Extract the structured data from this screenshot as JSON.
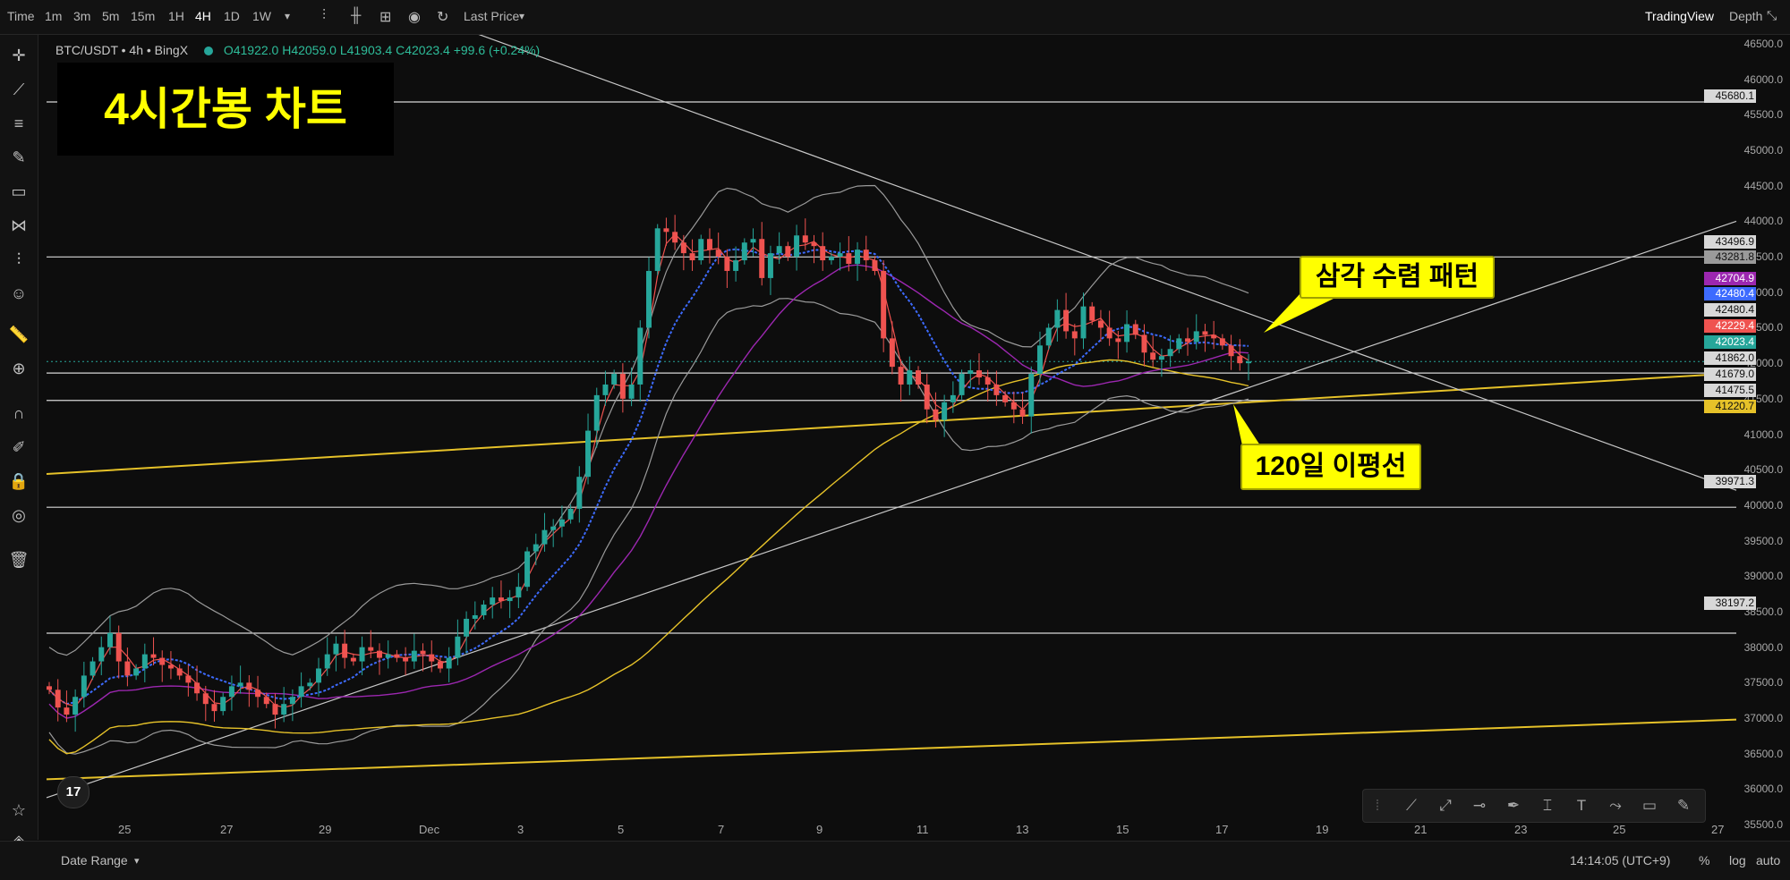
{
  "toolbar": {
    "timeframes": [
      "Time",
      "1m",
      "3m",
      "5m",
      "15m",
      "1H",
      "4H",
      "1D",
      "1W"
    ],
    "active_timeframe": "4H",
    "price_type": "Last Price",
    "brand": "TradingView",
    "depth": "Depth"
  },
  "legend": {
    "symbol": "BTC/USDT • 4h • BingX",
    "ohlc": "O41922.0  H42059.0  L41903.4  C42023.4  +99.6 (+0.24%)"
  },
  "annotations": {
    "title": "4시간봉 차트",
    "triangle": "삼각 수렴 패턴",
    "ma120": "120일 이평선"
  },
  "colors": {
    "up": "#26a69a",
    "down": "#ef5350",
    "gold": "#e6c229",
    "ma_blue": "#3d6bff",
    "ma_purple": "#9c27b0",
    "band": "#9a9a9a",
    "callout_bg": "#ffff00"
  },
  "price_axis": {
    "ticks": [
      "46500.0",
      "46000.0",
      "45500.0",
      "45000.0",
      "44500.0",
      "44000.0",
      "43500.0",
      "43000.0",
      "42500.0",
      "42000.0",
      "41500.0",
      "41000.0",
      "40500.0",
      "40000.0",
      "39500.0",
      "39000.0",
      "38500.0",
      "38000.0",
      "37500.0",
      "37000.0",
      "36500.0",
      "36000.0",
      "35500.0"
    ],
    "labels": [
      {
        "text": "45680.1",
        "bg": "#d8d8d8",
        "fg": "#111"
      },
      {
        "text": "43496.9",
        "bg": "#d8d8d8",
        "fg": "#111"
      },
      {
        "text": "43281.8",
        "bg": "#9a9a9a",
        "fg": "#111"
      },
      {
        "text": "42704.9",
        "bg": "#9c27b0",
        "fg": "#fff"
      },
      {
        "text": "42480.4",
        "bg": "#3d6bff",
        "fg": "#fff"
      },
      {
        "text": "42480.4",
        "bg": "#d8d8d8",
        "fg": "#111"
      },
      {
        "text": "42229.4",
        "bg": "#ef5350",
        "fg": "#fff"
      },
      {
        "text": "42023.4",
        "bg": "#26a69a",
        "fg": "#fff"
      },
      {
        "text": "41862.0",
        "bg": "#d8d8d8",
        "fg": "#111"
      },
      {
        "text": "41679.0",
        "bg": "#d8d8d8",
        "fg": "#111"
      },
      {
        "text": "41475.5",
        "bg": "#d8d8d8",
        "fg": "#111"
      },
      {
        "text": "41220.7",
        "bg": "#e6c229",
        "fg": "#111"
      },
      {
        "text": "39971.3",
        "bg": "#d8d8d8",
        "fg": "#111"
      },
      {
        "text": "38197.2",
        "bg": "#d8d8d8",
        "fg": "#111"
      }
    ]
  },
  "time_axis": [
    "25",
    "27",
    "29",
    "Dec",
    "3",
    "5",
    "7",
    "9",
    "11",
    "13",
    "15",
    "17",
    "19",
    "21",
    "23",
    "25",
    "27"
  ],
  "horizontal_levels": [
    45680.1,
    43496.9,
    41862.0,
    41475.5,
    39971.3,
    38197.2
  ],
  "bottom": {
    "date_range": "Date Range",
    "clock": "14:14:05 (UTC+9)",
    "percent": "%",
    "log": "log",
    "auto": "auto",
    "logo": "17"
  },
  "chart_data": {
    "type": "candlestick",
    "symbol": "BTC/USDT",
    "interval": "4h",
    "ylim": [
      35300,
      46600
    ],
    "x_ticks": [
      "25",
      "27",
      "29",
      "Dec",
      "3",
      "5",
      "7",
      "9",
      "11",
      "13",
      "15",
      "17",
      "19",
      "21",
      "23",
      "25",
      "27"
    ],
    "close_series": [
      37400,
      37150,
      37050,
      37300,
      37600,
      37800,
      38000,
      38200,
      37800,
      37600,
      37700,
      37900,
      37850,
      37750,
      37700,
      37600,
      37500,
      37350,
      37200,
      37100,
      37300,
      37450,
      37500,
      37400,
      37300,
      37200,
      37050,
      37200,
      37300,
      37450,
      37500,
      37700,
      37900,
      38050,
      37850,
      37800,
      38000,
      37950,
      37850,
      37900,
      37850,
      37800,
      37950,
      37900,
      37800,
      37700,
      37850,
      38150,
      38400,
      38450,
      38600,
      38700,
      38650,
      38700,
      38850,
      39350,
      39450,
      39650,
      39700,
      39800,
      39950,
      40400,
      41050,
      41550,
      41700,
      41850,
      41500,
      41700,
      42500,
      43300,
      43900,
      43850,
      43700,
      43550,
      43450,
      43750,
      43600,
      43500,
      43300,
      43450,
      43700,
      43750,
      43200,
      43550,
      43650,
      43500,
      43800,
      43700,
      43650,
      43450,
      43500,
      43550,
      43400,
      43600,
      43450,
      43300,
      42350,
      41950,
      41700,
      41900,
      41700,
      41350,
      41200,
      41450,
      41550,
      41850,
      41900,
      41800,
      41700,
      41550,
      41450,
      41350,
      41250,
      41850,
      42250,
      42500,
      42750,
      42450,
      42350,
      42800,
      42600,
      42500,
      42350,
      42300,
      42550,
      42400,
      42150,
      42050,
      42100,
      42200,
      42350,
      42300,
      42450,
      42400,
      42350,
      42250,
      42100,
      42000,
      42023.4
    ]
  }
}
